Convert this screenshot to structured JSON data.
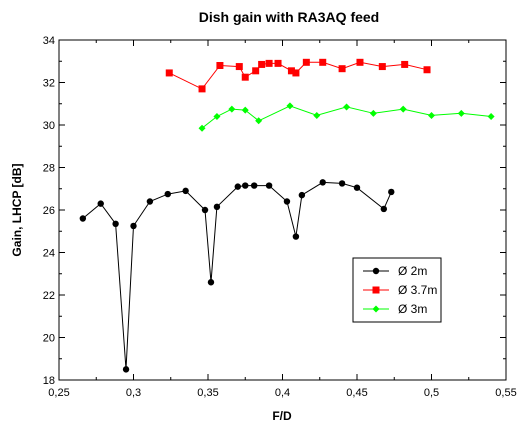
{
  "chart_data": {
    "type": "line",
    "title": "Dish gain with RA3AQ feed",
    "xlabel": "F/D",
    "ylabel": "Gain, LHCP [dB]",
    "xlim": [
      0.25,
      0.55
    ],
    "ylim": [
      18,
      34
    ],
    "xticks": [
      0.25,
      0.3,
      0.35,
      0.4,
      0.45,
      0.5,
      0.55
    ],
    "xtick_labels": [
      "0,25",
      "0,3",
      "0,35",
      "0,4",
      "0,45",
      "0,5",
      "0,55"
    ],
    "yticks": [
      18,
      20,
      22,
      24,
      26,
      28,
      30,
      32,
      34
    ],
    "ytick_labels": [
      "18",
      "20",
      "22",
      "24",
      "26",
      "28",
      "30",
      "32",
      "34"
    ],
    "grid": false,
    "legend_position": "lower-right",
    "series": [
      {
        "name": "Ø 2m",
        "color": "#000000",
        "marker": "circle",
        "x": [
          0.266,
          0.278,
          0.288,
          0.295,
          0.3,
          0.311,
          0.323,
          0.335,
          0.348,
          0.352,
          0.356,
          0.37,
          0.375,
          0.381,
          0.391,
          0.403,
          0.409,
          0.413,
          0.427,
          0.44,
          0.45,
          0.468,
          0.473
        ],
        "y": [
          25.6,
          26.3,
          25.35,
          18.5,
          25.25,
          26.4,
          26.75,
          26.9,
          26.0,
          22.6,
          26.15,
          27.1,
          27.15,
          27.15,
          27.15,
          26.4,
          24.75,
          26.7,
          27.3,
          27.25,
          27.05,
          26.05,
          26.85
        ]
      },
      {
        "name": "Ø 3.7m",
        "color": "#ff0000",
        "marker": "square",
        "x": [
          0.324,
          0.346,
          0.358,
          0.371,
          0.375,
          0.382,
          0.386,
          0.391,
          0.397,
          0.406,
          0.409,
          0.416,
          0.427,
          0.44,
          0.452,
          0.467,
          0.482,
          0.497
        ],
        "y": [
          32.45,
          31.7,
          32.8,
          32.75,
          32.25,
          32.55,
          32.85,
          32.9,
          32.9,
          32.55,
          32.45,
          32.95,
          32.95,
          32.65,
          32.95,
          32.75,
          32.85,
          32.6
        ]
      },
      {
        "name": "Ø 3m",
        "color": "#00ff00",
        "marker": "diamond",
        "x": [
          0.346,
          0.356,
          0.366,
          0.375,
          0.384,
          0.405,
          0.423,
          0.443,
          0.461,
          0.481,
          0.5,
          0.52,
          0.54
        ],
        "y": [
          29.85,
          30.4,
          30.75,
          30.7,
          30.2,
          30.9,
          30.45,
          30.85,
          30.55,
          30.75,
          30.45,
          30.55,
          30.4
        ]
      }
    ]
  }
}
